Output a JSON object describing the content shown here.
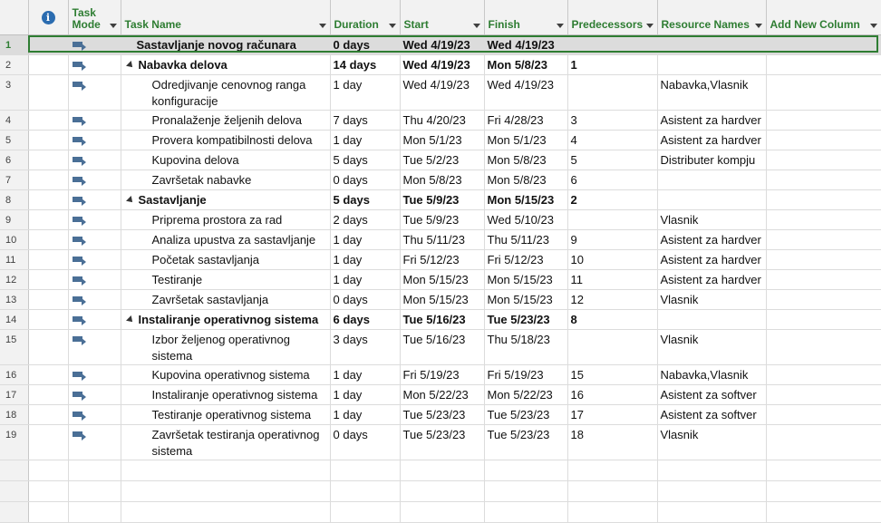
{
  "header": {
    "info_icon": "info-icon",
    "task_mode_line1": "Task",
    "task_mode_line2": "Mode",
    "task_name": "Task Name",
    "duration": "Duration",
    "start": "Start",
    "finish": "Finish",
    "predecessors": "Predecessors",
    "resource_names": "Resource Names",
    "add_new_column": "Add New Column"
  },
  "colors": {
    "header_text": "#2e7d32",
    "selection_border": "#2e7d32",
    "task_icon": "#4a6f96"
  },
  "tasks": [
    {
      "id": "1",
      "name": "Sastavljanje novog računara",
      "duration": "0 days",
      "start": "Wed 4/19/23",
      "finish": "Wed 4/19/23",
      "pred": "",
      "res": ""
    },
    {
      "id": "2",
      "name": "Nabavka delova",
      "duration": "14 days",
      "start": "Wed 4/19/23",
      "finish": "Mon 5/8/23",
      "pred": "1",
      "res": ""
    },
    {
      "id": "3",
      "name": "Odredjivanje cenovnog ranga konfiguracije",
      "duration": "1 day",
      "start": "Wed 4/19/23",
      "finish": "Wed 4/19/23",
      "pred": "",
      "res": "Nabavka,Vlasnik"
    },
    {
      "id": "4",
      "name": "Pronalaženje željenih delova",
      "duration": "7 days",
      "start": "Thu 4/20/23",
      "finish": "Fri 4/28/23",
      "pred": "3",
      "res": "Asistent za hardver"
    },
    {
      "id": "5",
      "name": "Provera kompatibilnosti delova",
      "duration": "1 day",
      "start": "Mon 5/1/23",
      "finish": "Mon 5/1/23",
      "pred": "4",
      "res": "Asistent za hardver"
    },
    {
      "id": "6",
      "name": "Kupovina delova",
      "duration": "5 days",
      "start": "Tue 5/2/23",
      "finish": "Mon 5/8/23",
      "pred": "5",
      "res": "Distributer kompju"
    },
    {
      "id": "7",
      "name": "Završetak nabavke",
      "duration": "0 days",
      "start": "Mon 5/8/23",
      "finish": "Mon 5/8/23",
      "pred": "6",
      "res": ""
    },
    {
      "id": "8",
      "name": "Sastavljanje",
      "duration": "5 days",
      "start": "Tue 5/9/23",
      "finish": "Mon 5/15/23",
      "pred": "2",
      "res": ""
    },
    {
      "id": "9",
      "name": "Priprema prostora za rad",
      "duration": "2 days",
      "start": "Tue 5/9/23",
      "finish": "Wed 5/10/23",
      "pred": "",
      "res": "Vlasnik"
    },
    {
      "id": "10",
      "name": "Analiza upustva za sastavljanje",
      "duration": "1 day",
      "start": "Thu 5/11/23",
      "finish": "Thu 5/11/23",
      "pred": "9",
      "res": "Asistent za hardver"
    },
    {
      "id": "11",
      "name": "Početak sastavljanja",
      "duration": "1 day",
      "start": "Fri 5/12/23",
      "finish": "Fri 5/12/23",
      "pred": "10",
      "res": "Asistent za hardver"
    },
    {
      "id": "12",
      "name": "Testiranje",
      "duration": "1 day",
      "start": "Mon 5/15/23",
      "finish": "Mon 5/15/23",
      "pred": "11",
      "res": "Asistent za hardver"
    },
    {
      "id": "13",
      "name": "Završetak sastavljanja",
      "duration": "0 days",
      "start": "Mon 5/15/23",
      "finish": "Mon 5/15/23",
      "pred": "12",
      "res": "Vlasnik"
    },
    {
      "id": "14",
      "name": "Instaliranje operativnog sistema",
      "duration": "6 days",
      "start": "Tue 5/16/23",
      "finish": "Tue 5/23/23",
      "pred": "8",
      "res": ""
    },
    {
      "id": "15",
      "name": "Izbor željenog operativnog sistema",
      "duration": "3 days",
      "start": "Tue 5/16/23",
      "finish": "Thu 5/18/23",
      "pred": "",
      "res": "Vlasnik"
    },
    {
      "id": "16",
      "name": "Kupovina operativnog sistema",
      "duration": "1 day",
      "start": "Fri 5/19/23",
      "finish": "Fri 5/19/23",
      "pred": "15",
      "res": "Nabavka,Vlasnik"
    },
    {
      "id": "17",
      "name": "Instaliranje operativnog sistema",
      "duration": "1 day",
      "start": "Mon 5/22/23",
      "finish": "Mon 5/22/23",
      "pred": "16",
      "res": "Asistent za softver"
    },
    {
      "id": "18",
      "name": "Testiranje operativnog sistema",
      "duration": "1 day",
      "start": "Tue 5/23/23",
      "finish": "Tue 5/23/23",
      "pred": "17",
      "res": "Asistent za softver"
    },
    {
      "id": "19",
      "name": "Završetak testiranja operativnog sistema",
      "duration": "0 days",
      "start": "Tue 5/23/23",
      "finish": "Tue 5/23/23",
      "pred": "18",
      "res": "Vlasnik"
    }
  ]
}
